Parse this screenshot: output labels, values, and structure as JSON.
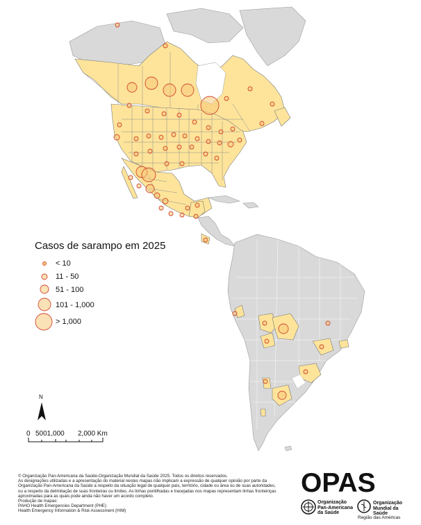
{
  "map": {
    "highlight_color": "#fde49a",
    "other_color": "#d9d9d9",
    "circle_stroke": "#d2462e",
    "circle_fill": "#f7c97a"
  },
  "legend": {
    "title": "Casos de sarampo em 2025",
    "items": [
      {
        "label": "< 10",
        "size": "smallest"
      },
      {
        "label": "11 - 50",
        "size": "small"
      },
      {
        "label": "51 - 100",
        "size": "medium"
      },
      {
        "label": "101 - 1,000",
        "size": "large"
      },
      {
        "label": "> 1,000",
        "size": "largest"
      }
    ]
  },
  "north_label": "N",
  "scale": {
    "tick_0": "0",
    "tick_mid": "5001,000",
    "tick_end": "2,000 Km"
  },
  "footer": {
    "line1": "© Organização Pan-Americana da Saúde-Organização Mundial da Saúde 2025. Todos os direitos reservados.",
    "line2": "As designações utilizadas e a apresentação do material nestes mapas não implicam a expressão de qualquer opinião por parte da",
    "line3": "Organização Pan-Americana da Saúde a respeito da situação legal de qualquer país, território, cidade ou área ou de suas autoridades,",
    "line4": "ou a respeito da delimitação de suas fronteiras ou limites. As linhas pontilhadas e tracejadas nos mapas representam linhas fronteiriças",
    "line5": "aproximadas para as quais pode ainda não haver um acordo completo.",
    "line6": "Produção de mapas:",
    "line7": "PAHO Health Emergencies Department (PHE)",
    "line8": "Health Emergency Information & Risk Assessment (HIM)"
  },
  "logo": {
    "opas": "OPAS",
    "paho_line1": "Organização",
    "paho_line2": "Pan-Americana",
    "paho_line3": "da Saúde",
    "who_line1": "Organização",
    "who_line2": "Mundial da Saúde",
    "region": "Região das Américas"
  }
}
